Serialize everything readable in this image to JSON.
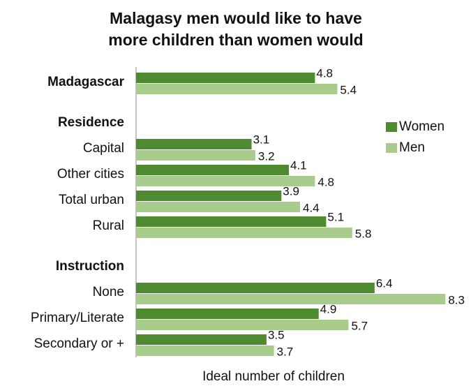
{
  "chart_data": {
    "type": "bar",
    "orientation": "horizontal",
    "title": [
      "Malagasy men would like to have",
      "more children than women would"
    ],
    "x_label": "Ideal number of children",
    "categories": [
      "Madagascar",
      "Residence",
      "Capital",
      "Other cities",
      "Total urban",
      "Rural",
      "Instruction",
      "None",
      "Primary/Literate",
      "Secondary or +"
    ],
    "bold": [
      true,
      true,
      false,
      false,
      false,
      false,
      true,
      false,
      false,
      false
    ],
    "series": [
      {
        "name": "Women",
        "color": "#4e8b30",
        "values": [
          4.8,
          null,
          3.1,
          4.1,
          3.9,
          5.1,
          null,
          6.4,
          4.9,
          3.5
        ]
      },
      {
        "name": "Men",
        "color": "#a8cc8c",
        "values": [
          5.4,
          null,
          3.2,
          4.8,
          4.4,
          5.8,
          null,
          8.3,
          5.7,
          3.7
        ]
      }
    ],
    "xlim": [
      0,
      8.5
    ],
    "legend": "right"
  }
}
